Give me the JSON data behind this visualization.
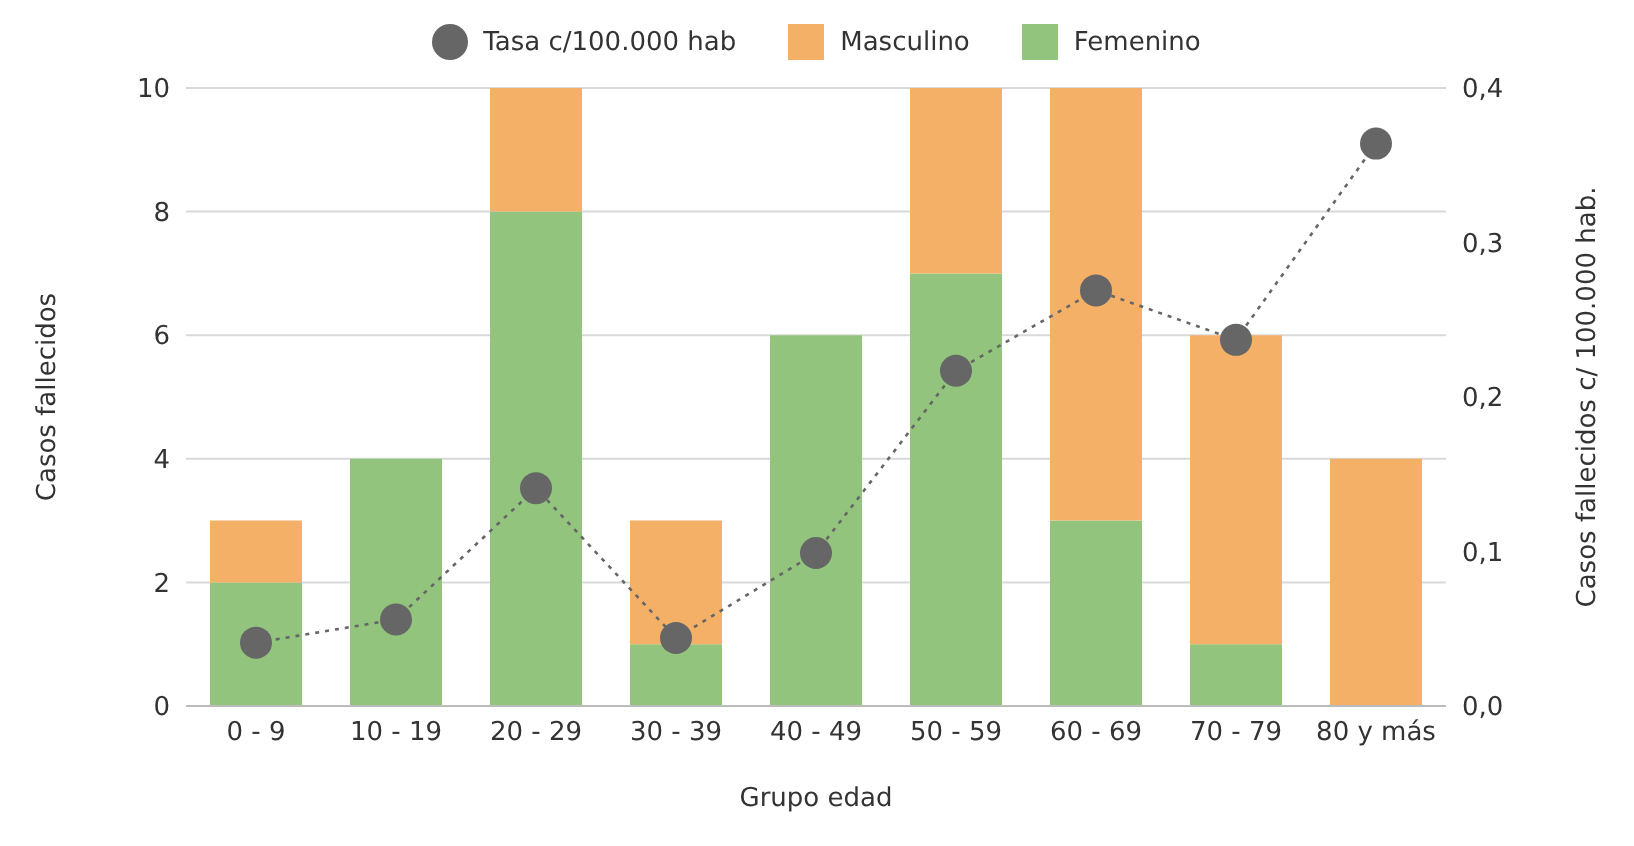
{
  "chart_data": {
    "type": "bar",
    "stacked": true,
    "xlabel": "Grupo edad",
    "ylabel": "Casos fallecidos",
    "y2label": "Casos fallecidos c/ 100.000 hab.",
    "categories": [
      "0 - 9",
      "10 - 19",
      "20 - 29",
      "30 - 39",
      "40 - 49",
      "50 - 59",
      "60 - 69",
      "70 - 79",
      "80 y más"
    ],
    "series": [
      {
        "name": "Femenino",
        "color": "#93c47d",
        "values": [
          2,
          4,
          8,
          1,
          6,
          7,
          3,
          1,
          0
        ]
      },
      {
        "name": "Masculino",
        "color": "#f5b068",
        "values": [
          1,
          0,
          2,
          2,
          0,
          3,
          7,
          5,
          4
        ]
      },
      {
        "name": "Tasa c/100.000 hab",
        "type": "line",
        "axis": "y2",
        "color": "#666666",
        "line_style": "dotted",
        "marker": "circle",
        "values": [
          0.041,
          0.056,
          0.141,
          0.044,
          0.099,
          0.217,
          0.269,
          0.237,
          0.364
        ]
      }
    ],
    "ylim": [
      0,
      10
    ],
    "yticks": [
      0,
      2,
      4,
      6,
      8,
      10
    ],
    "y2lim": [
      0,
      0.4
    ],
    "y2ticks": [
      {
        "value": 0,
        "label": "0,0"
      },
      {
        "value": 0.1,
        "label": "0,1"
      },
      {
        "value": 0.2,
        "label": "0,2"
      },
      {
        "value": 0.3,
        "label": "0,3"
      },
      {
        "value": 0.4,
        "label": "0,4"
      }
    ],
    "grid": "y",
    "legend": "top"
  }
}
